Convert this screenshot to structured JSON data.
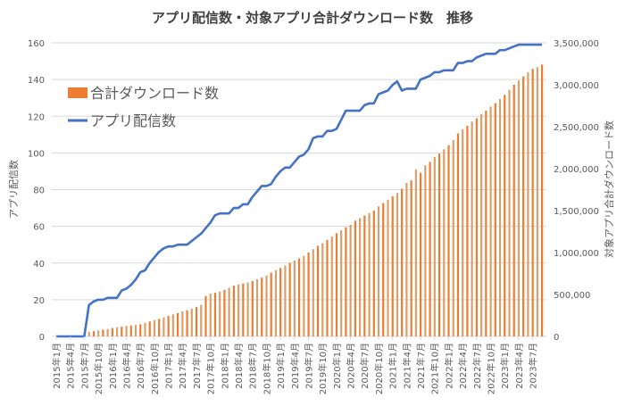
{
  "chart_data": {
    "type": "bar+line",
    "title": "アプリ配信数・対象アプリ合計ダウンロード数　推移",
    "y_left_label": "アプリ配信数",
    "y_right_label": "対象アプリ合計ダウンロード数",
    "y_left_lim": [
      0,
      160
    ],
    "y_left_ticks": [
      "0",
      "20",
      "40",
      "60",
      "80",
      "100",
      "120",
      "140",
      "160"
    ],
    "y_right_lim": [
      0,
      3500000
    ],
    "y_right_ticks": [
      "0",
      "500,000",
      "1,000,000",
      "1,500,000",
      "2,000,000",
      "2,500,000",
      "3,000,000",
      "3,500,000"
    ],
    "x_tick_labels": [
      "2015年1月",
      "2015年4月",
      "2015年7月",
      "2015年10月",
      "2016年1月",
      "2016年4月",
      "2016年7月",
      "2016年10月",
      "2017年1月",
      "2017年4月",
      "2017年7月",
      "2017年10月",
      "2018年1月",
      "2018年4月",
      "2018年7月",
      "2018年10月",
      "2019年1月",
      "2019年4月",
      "2019年7月",
      "2019年10月",
      "2020年1月",
      "2020年4月",
      "2020年7月",
      "2020年10月",
      "2021年1月",
      "2021年4月",
      "2021年7月",
      "2021年10月",
      "2022年1月",
      "2022年4月",
      "2022年7月",
      "2022年10月",
      "2023年1月",
      "2023年4月",
      "2023年7月"
    ],
    "x_start": "2015年1月",
    "x_end": "2023年9月",
    "grid": true,
    "legend_position": "top-left",
    "series": [
      {
        "name": "合計ダウンロード数",
        "type": "bar",
        "axis": "right",
        "color": "#ED7D31",
        "values": [
          0,
          0,
          0,
          0,
          0,
          0,
          0,
          56000,
          62000,
          72000,
          80000,
          88000,
          100000,
          108000,
          115000,
          125000,
          130000,
          138000,
          145000,
          160000,
          178000,
          195000,
          210000,
          228000,
          245000,
          262000,
          278000,
          298000,
          312000,
          330000,
          350000,
          376000,
          482000,
          510000,
          520000,
          535000,
          555000,
          580000,
          605000,
          618000,
          630000,
          642000,
          660000,
          680000,
          700000,
          725000,
          760000,
          790000,
          815000,
          845000,
          875000,
          905000,
          930000,
          960000,
          1000000,
          1040000,
          1080000,
          1110000,
          1150000,
          1190000,
          1230000,
          1265000,
          1300000,
          1330000,
          1380000,
          1410000,
          1440000,
          1470000,
          1500000,
          1550000,
          1590000,
          1630000,
          1670000,
          1710000,
          1760000,
          1830000,
          1860000,
          1990000,
          1950000,
          2040000,
          2080000,
          2140000,
          2180000,
          2230000,
          2280000,
          2340000,
          2420000,
          2470000,
          2510000,
          2560000,
          2600000,
          2650000,
          2690000,
          2740000,
          2780000,
          2830000,
          2880000,
          2940000,
          3000000,
          3050000,
          3100000,
          3150000,
          3190000,
          3210000,
          3240000
        ]
      },
      {
        "name": "アプリ配信数",
        "type": "line",
        "axis": "left",
        "color": "#4472C4",
        "values": [
          0,
          0,
          0,
          0,
          0,
          0,
          0,
          17,
          19,
          20,
          20,
          21,
          21,
          21,
          25,
          26,
          28,
          31,
          35,
          36,
          40,
          43,
          46,
          48,
          49,
          49,
          50,
          50,
          50,
          52,
          54,
          56,
          59,
          62,
          66,
          67,
          67,
          67,
          70,
          70,
          72,
          72,
          76,
          79,
          82,
          82,
          83,
          87,
          90,
          92,
          92,
          95,
          98,
          99,
          102,
          108,
          109,
          109,
          112,
          112,
          113,
          118,
          123,
          123,
          123,
          123,
          126,
          127,
          127,
          132,
          133,
          134,
          137,
          139,
          134,
          135,
          135,
          135,
          140,
          141,
          142,
          144,
          144,
          145,
          145,
          145,
          149,
          149,
          150,
          150,
          152,
          153,
          154,
          154,
          154,
          156,
          156,
          157,
          158,
          159,
          159,
          159,
          159,
          159,
          159
        ]
      }
    ]
  }
}
